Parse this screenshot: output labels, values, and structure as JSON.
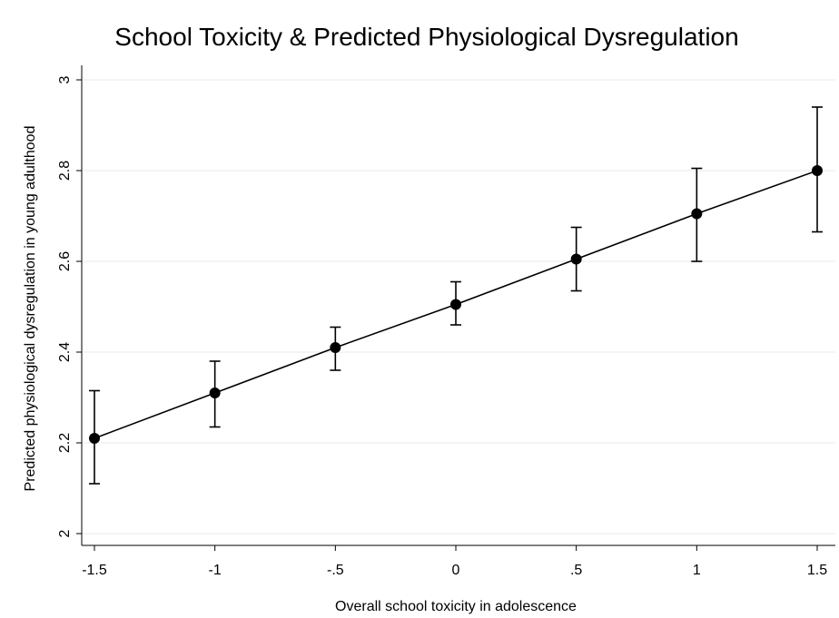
{
  "chart_data": {
    "type": "line",
    "title": "School Toxicity & Predicted Physiological Dysregulation",
    "xlabel": "Overall school toxicity in adolescence",
    "ylabel": "Predicted physiological dysregulation in young adulthood",
    "x": [
      -1.5,
      -1,
      -0.5,
      0,
      0.5,
      1,
      1.5
    ],
    "x_tick_labels": [
      "-1.5",
      "-1",
      "-.5",
      "0",
      ".5",
      "1",
      "1.5"
    ],
    "y_ticks": [
      2,
      2.2,
      2.4,
      2.6,
      2.8,
      3
    ],
    "y_tick_labels": [
      "2",
      "2.2",
      "2.4",
      "2.6",
      "2.8",
      "3"
    ],
    "xlim": [
      -1.5,
      1.5
    ],
    "ylim": [
      2,
      3
    ],
    "grid": true,
    "series": [
      {
        "values": [
          2.21,
          2.31,
          2.41,
          2.505,
          2.605,
          2.705,
          2.8
        ],
        "ci_lower": [
          2.11,
          2.235,
          2.36,
          2.46,
          2.535,
          2.6,
          2.665
        ],
        "ci_upper": [
          2.315,
          2.38,
          2.455,
          2.555,
          2.675,
          2.805,
          2.94
        ],
        "color": "#000000"
      }
    ]
  }
}
